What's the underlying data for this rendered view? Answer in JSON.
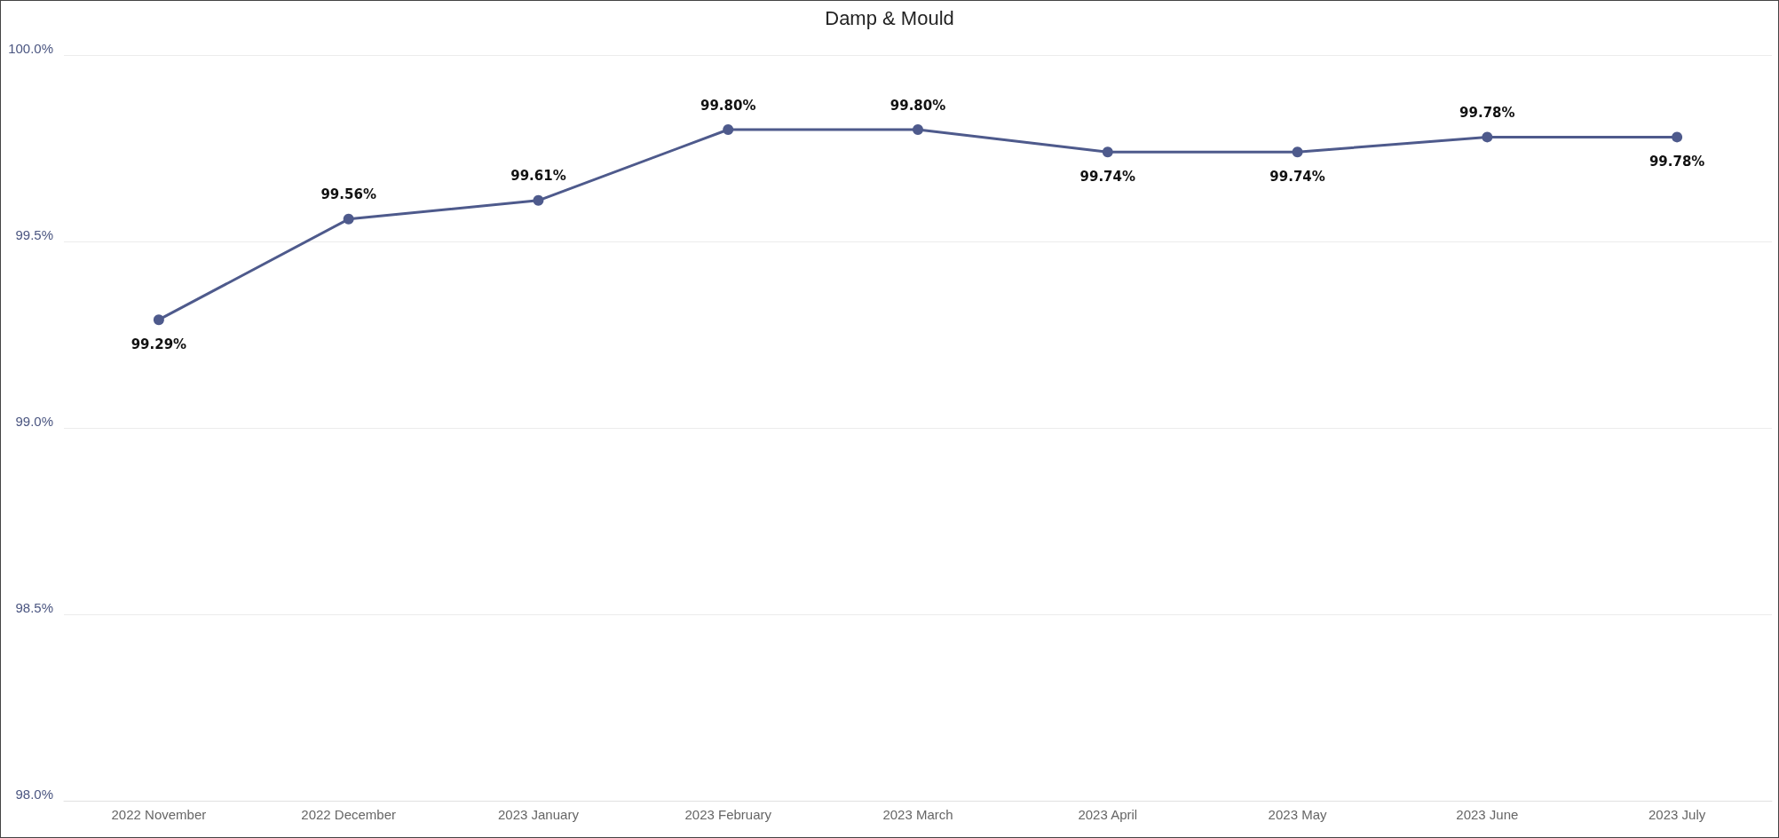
{
  "chart_data": {
    "type": "line",
    "title": "Damp & Mould",
    "categories": [
      "2022 November",
      "2022 December",
      "2023 January",
      "2023 February",
      "2023 March",
      "2023 April",
      "2023 May",
      "2023 June",
      "2023 July"
    ],
    "series": [
      {
        "color": "#4e5a8c",
        "values": [
          99.29,
          99.56,
          99.61,
          99.8,
          99.8,
          99.74,
          99.74,
          99.78,
          99.78
        ],
        "value_labels": [
          "99.29%",
          "99.56%",
          "99.61%",
          "99.80%",
          "99.80%",
          "99.74%",
          "99.74%",
          "99.78%",
          "99.78%"
        ]
      }
    ],
    "ylim": [
      98,
      100
    ],
    "yticks": [
      {
        "value": 98,
        "label": "98.0%"
      },
      {
        "value": 98.5,
        "label": "98.5%"
      },
      {
        "value": 99,
        "label": "99.0%"
      },
      {
        "value": 99.5,
        "label": "99.5%"
      },
      {
        "value": 100,
        "label": "100.0%"
      }
    ],
    "grid": "y",
    "marker": "circle",
    "line_style": "solid"
  }
}
